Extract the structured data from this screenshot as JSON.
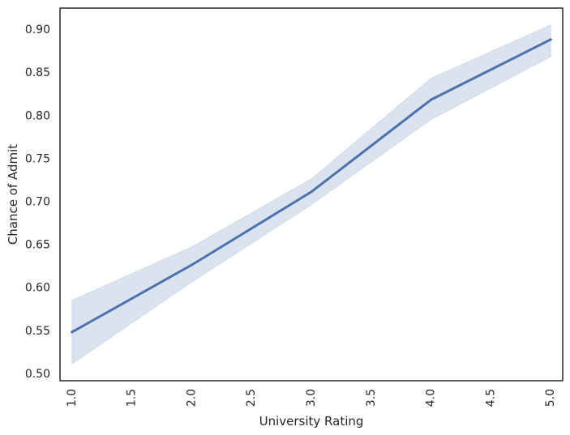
{
  "chart_data": {
    "type": "line",
    "xlabel": "University Rating",
    "ylabel": "Chance of Admit",
    "x": [
      1.0,
      2.0,
      3.0,
      4.0,
      5.0
    ],
    "series": [
      {
        "values": [
          0.548,
          0.626,
          0.711,
          0.818,
          0.888
        ],
        "ci_lower": [
          0.511,
          0.606,
          0.696,
          0.795,
          0.868
        ],
        "ci_upper": [
          0.585,
          0.647,
          0.726,
          0.843,
          0.905
        ],
        "color": "#4c72b0"
      }
    ],
    "xlim": [
      0.9,
      5.1
    ],
    "ylim": [
      0.4915,
      0.9245
    ],
    "xticks": [
      1.0,
      1.5,
      2.0,
      2.5,
      3.0,
      3.5,
      4.0,
      4.5,
      5.0
    ],
    "xtick_labels": [
      "1.0",
      "1.5",
      "2.0",
      "2.5",
      "3.0",
      "3.5",
      "4.0",
      "4.5",
      "5.0"
    ],
    "yticks": [
      0.5,
      0.55,
      0.6,
      0.65,
      0.7,
      0.75,
      0.8,
      0.85,
      0.9
    ],
    "ytick_labels": [
      "0.50",
      "0.55",
      "0.60",
      "0.65",
      "0.70",
      "0.75",
      "0.80",
      "0.85",
      "0.90"
    ],
    "xtick_rotation": 90,
    "grid": false,
    "legend": false
  }
}
